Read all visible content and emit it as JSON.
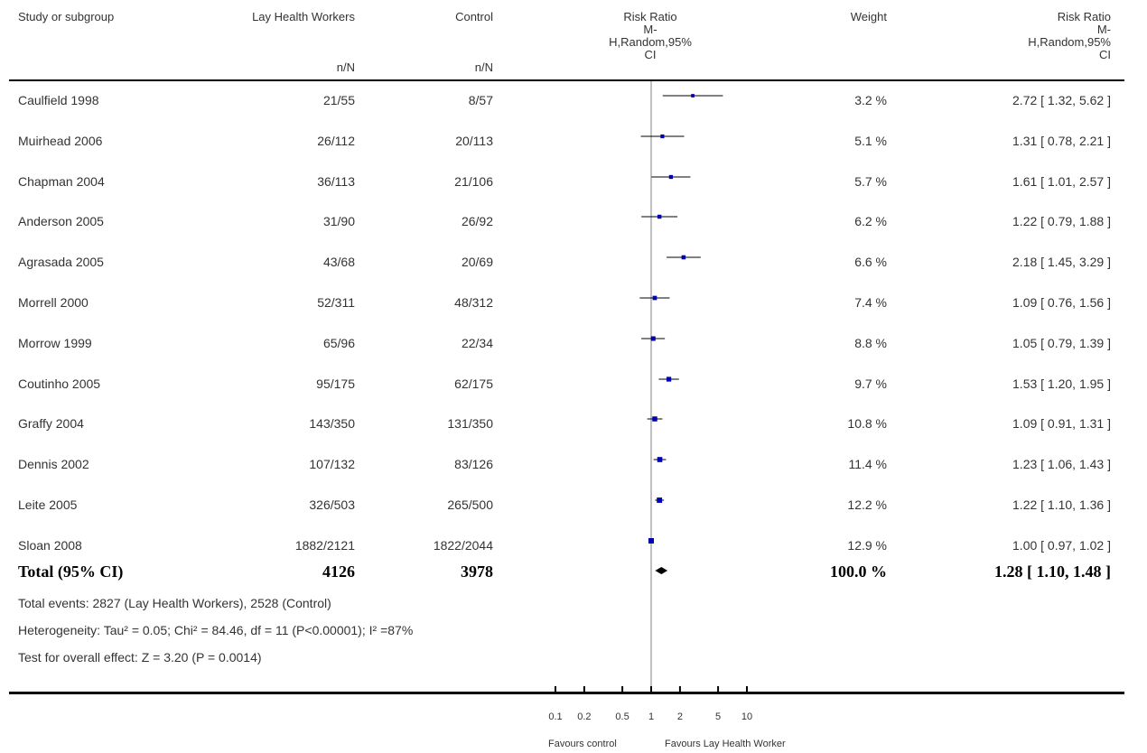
{
  "headers": {
    "study": "Study or subgroup",
    "treatment": "Lay Health Workers",
    "treatment_sub": "n/N",
    "control": "Control",
    "control_sub": "n/N",
    "rr_plot": "Risk Ratio\nM-\nH,Random,95%\nCI",
    "weight": "Weight",
    "rr_text": "Risk Ratio\nM-\nH,Random,95%\nCI"
  },
  "studies": [
    {
      "name": "Caulfield 1998",
      "treatment": "21/55",
      "control": "8/57",
      "weight": "3.2 %",
      "rr_text": "2.72 [ 1.32, 5.62 ]"
    },
    {
      "name": "Muirhead 2006",
      "treatment": "26/112",
      "control": "20/113",
      "weight": "5.1 %",
      "rr_text": "1.31 [ 0.78, 2.21 ]"
    },
    {
      "name": "Chapman 2004",
      "treatment": "36/113",
      "control": "21/106",
      "weight": "5.7 %",
      "rr_text": "1.61 [ 1.01, 2.57 ]"
    },
    {
      "name": "Anderson 2005",
      "treatment": "31/90",
      "control": "26/92",
      "weight": "6.2 %",
      "rr_text": "1.22 [ 0.79, 1.88 ]"
    },
    {
      "name": "Agrasada 2005",
      "treatment": "43/68",
      "control": "20/69",
      "weight": "6.6 %",
      "rr_text": "2.18 [ 1.45, 3.29 ]"
    },
    {
      "name": "Morrell 2000",
      "treatment": "52/311",
      "control": "48/312",
      "weight": "7.4 %",
      "rr_text": "1.09 [ 0.76, 1.56 ]"
    },
    {
      "name": "Morrow 1999",
      "treatment": "65/96",
      "control": "22/34",
      "weight": "8.8 %",
      "rr_text": "1.05 [ 0.79, 1.39 ]"
    },
    {
      "name": "Coutinho 2005",
      "treatment": "95/175",
      "control": "62/175",
      "weight": "9.7 %",
      "rr_text": "1.53 [ 1.20, 1.95 ]"
    },
    {
      "name": "Graffy 2004",
      "treatment": "143/350",
      "control": "131/350",
      "weight": "10.8 %",
      "rr_text": "1.09 [ 0.91, 1.31 ]"
    },
    {
      "name": "Dennis 2002",
      "treatment": "107/132",
      "control": "83/126",
      "weight": "11.4 %",
      "rr_text": "1.23 [ 1.06, 1.43 ]"
    },
    {
      "name": "Leite 2005",
      "treatment": "326/503",
      "control": "265/500",
      "weight": "12.2 %",
      "rr_text": "1.22 [ 1.10, 1.36 ]"
    },
    {
      "name": "Sloan 2008",
      "treatment": "1882/2121",
      "control": "1822/2044",
      "weight": "12.9 %",
      "rr_text": "1.00 [ 0.97, 1.02 ]"
    }
  ],
  "total": {
    "label": "Total (95% CI)",
    "treatment": "4126",
    "control": "3978",
    "weight": "100.0 %",
    "rr_text": "1.28 [ 1.10, 1.48 ]"
  },
  "footer": {
    "events": "Total events: 2827 (Lay Health Workers), 2528 (Control)",
    "heterogeneity": "Heterogeneity: Tau² = 0.05; Chi² = 84.46, df = 11 (P<0.00001); I² =87%",
    "overall": "Test for overall effect: Z = 3.20 (P = 0.0014)"
  },
  "axis": {
    "ticks": [
      {
        "value": 0.1,
        "label": "0.1"
      },
      {
        "value": 0.2,
        "label": "0.2"
      },
      {
        "value": 0.5,
        "label": "0.5"
      },
      {
        "value": 1,
        "label": "1"
      },
      {
        "value": 2,
        "label": "2"
      },
      {
        "value": 5,
        "label": "5"
      },
      {
        "value": 10,
        "label": "10"
      }
    ],
    "favours_left": "Favours control",
    "favours_right": "Favours Lay Health Worker"
  },
  "colors": {
    "marker": "#0000b0",
    "line": "#000000",
    "divider": "#808080"
  },
  "chart_data": {
    "type": "scatter",
    "scale": "log",
    "xlim": [
      0.1,
      10
    ],
    "null_value": 1,
    "points": [
      {
        "study": "Caulfield 1998",
        "rr": 2.72,
        "lo": 1.32,
        "hi": 5.62,
        "weight": 3.2
      },
      {
        "study": "Muirhead 2006",
        "rr": 1.31,
        "lo": 0.78,
        "hi": 2.21,
        "weight": 5.1
      },
      {
        "study": "Chapman 2004",
        "rr": 1.61,
        "lo": 1.01,
        "hi": 2.57,
        "weight": 5.7
      },
      {
        "study": "Anderson 2005",
        "rr": 1.22,
        "lo": 0.79,
        "hi": 1.88,
        "weight": 6.2
      },
      {
        "study": "Agrasada 2005",
        "rr": 2.18,
        "lo": 1.45,
        "hi": 3.29,
        "weight": 6.6
      },
      {
        "study": "Morrell 2000",
        "rr": 1.09,
        "lo": 0.76,
        "hi": 1.56,
        "weight": 7.4
      },
      {
        "study": "Morrow 1999",
        "rr": 1.05,
        "lo": 0.79,
        "hi": 1.39,
        "weight": 8.8
      },
      {
        "study": "Coutinho 2005",
        "rr": 1.53,
        "lo": 1.2,
        "hi": 1.95,
        "weight": 9.7
      },
      {
        "study": "Graffy 2004",
        "rr": 1.09,
        "lo": 0.91,
        "hi": 1.31,
        "weight": 10.8
      },
      {
        "study": "Dennis 2002",
        "rr": 1.23,
        "lo": 1.06,
        "hi": 1.43,
        "weight": 11.4
      },
      {
        "study": "Leite 2005",
        "rr": 1.22,
        "lo": 1.1,
        "hi": 1.36,
        "weight": 12.2
      },
      {
        "study": "Sloan 2008",
        "rr": 1.0,
        "lo": 0.97,
        "hi": 1.02,
        "weight": 12.9
      }
    ],
    "pooled": {
      "rr": 1.28,
      "lo": 1.1,
      "hi": 1.48
    }
  }
}
